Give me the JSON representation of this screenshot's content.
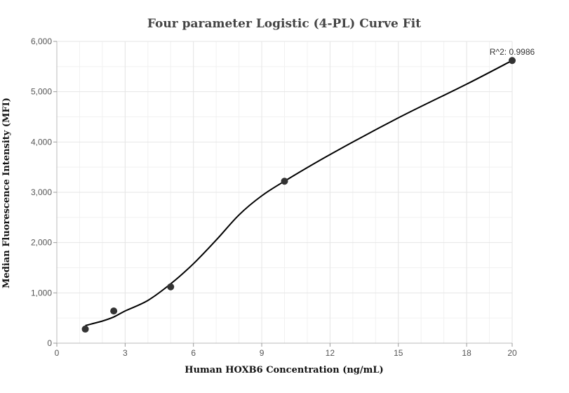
{
  "chart_data": {
    "type": "scatter",
    "title": "Four parameter Logistic (4-PL) Curve Fit",
    "xlabel": "Human HOXB6 Concentration  (ng/mL)",
    "ylabel": "Median Fluorescence Intensity (MFI)",
    "xlim": [
      0,
      20
    ],
    "ylim": [
      0,
      6000
    ],
    "x_ticks": [
      "0",
      "3",
      "6",
      "9",
      "12",
      "15",
      "18",
      "20"
    ],
    "x_tick_values": [
      0,
      3,
      6,
      9,
      12,
      15,
      18,
      20
    ],
    "y_ticks": [
      "0",
      "1,000",
      "2,000",
      "3,000",
      "4,000",
      "5,000",
      "6,000"
    ],
    "y_tick_values": [
      0,
      1000,
      2000,
      3000,
      4000,
      5000,
      6000
    ],
    "grid": true,
    "annotation": "R^2: 0.9986",
    "series": [
      {
        "kind": "points",
        "x": [
          1.25,
          2.5,
          5,
          10,
          20
        ],
        "y": [
          280,
          640,
          1120,
          3220,
          5620
        ]
      },
      {
        "kind": "fit-curve",
        "x": [
          1.25,
          2,
          2.5,
          3,
          4,
          5,
          6,
          7,
          8,
          9,
          10,
          12,
          15,
          18,
          20
        ],
        "y": [
          350,
          440,
          520,
          640,
          850,
          1180,
          1580,
          2050,
          2550,
          2930,
          3220,
          3750,
          4480,
          5150,
          5620
        ]
      }
    ],
    "colors": {
      "points": "#333333",
      "curve": "#000000",
      "grid": "#e6e6e6"
    }
  }
}
